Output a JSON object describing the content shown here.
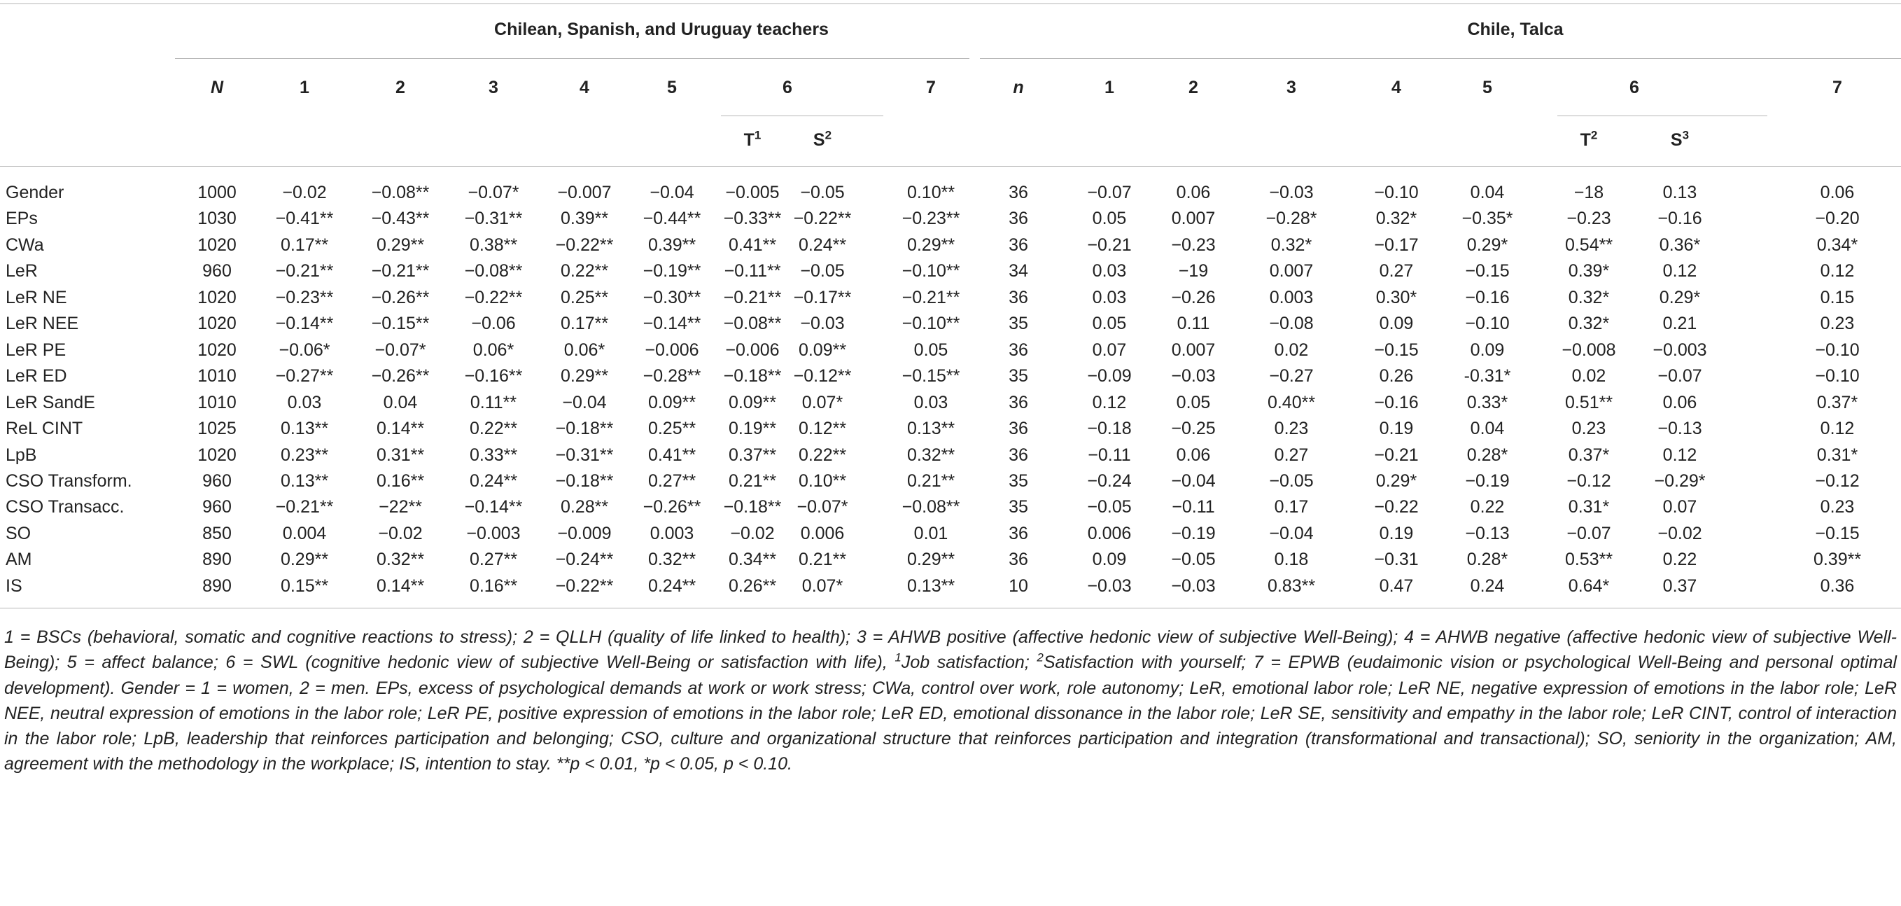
{
  "table": {
    "groups": [
      "Chilean, Spanish, and Uruguay teachers",
      "Chile, Talca"
    ],
    "columns": [
      "N",
      "1",
      "2",
      "3",
      "4",
      "5",
      "6",
      "7",
      "n",
      "1",
      "2",
      "3",
      "4",
      "5",
      "6",
      "7"
    ],
    "subcolumns": [
      {
        "text": "T",
        "sup": "1"
      },
      {
        "text": "S",
        "sup": "2"
      },
      {
        "text": "T",
        "sup": "2"
      },
      {
        "text": "S",
        "sup": "3"
      }
    ],
    "rows": [
      {
        "label": "Gender",
        "cells": [
          "1000",
          "−0.02",
          "−0.08**",
          "−0.07*",
          "−0.007",
          "−0.04",
          "−0.005",
          "−0.05",
          "0.10**",
          "36",
          "−0.07",
          "0.06",
          "−0.03",
          "−0.10",
          "0.04",
          "−18",
          "0.13",
          "0.06"
        ]
      },
      {
        "label": "EPs",
        "cells": [
          "1030",
          "−0.41**",
          "−0.43**",
          "−0.31**",
          "0.39**",
          "−0.44**",
          "−0.33**",
          "−0.22**",
          "−0.23**",
          "36",
          "0.05",
          "0.007",
          "−0.28*",
          "0.32*",
          "−0.35*",
          "−0.23",
          "−0.16",
          "−0.20"
        ]
      },
      {
        "label": "CWa",
        "cells": [
          "1020",
          "0.17**",
          "0.29**",
          "0.38**",
          "−0.22**",
          "0.39**",
          "0.41**",
          "0.24**",
          "0.29**",
          "36",
          "−0.21",
          "−0.23",
          "0.32*",
          "−0.17",
          "0.29*",
          "0.54**",
          "0.36*",
          "0.34*"
        ]
      },
      {
        "label": "LeR",
        "cells": [
          "960",
          "−0.21**",
          "−0.21**",
          "−0.08**",
          "0.22**",
          "−0.19**",
          "−0.11**",
          "−0.05",
          "−0.10**",
          "34",
          "0.03",
          "−19",
          "0.007",
          "0.27",
          "−0.15",
          "0.39*",
          "0.12",
          "0.12"
        ]
      },
      {
        "label": "LeR NE",
        "cells": [
          "1020",
          "−0.23**",
          "−0.26**",
          "−0.22**",
          "0.25**",
          "−0.30**",
          "−0.21**",
          "−0.17**",
          "−0.21**",
          "36",
          "0.03",
          "−0.26",
          "0.003",
          "0.30*",
          "−0.16",
          "0.32*",
          "0.29*",
          "0.15"
        ]
      },
      {
        "label": "LeR NEE",
        "cells": [
          "1020",
          "−0.14**",
          "−0.15**",
          "−0.06",
          "0.17**",
          "−0.14**",
          "−0.08**",
          "−0.03",
          "−0.10**",
          "35",
          "0.05",
          "0.11",
          "−0.08",
          "0.09",
          "−0.10",
          "0.32*",
          "0.21",
          "0.23"
        ]
      },
      {
        "label": "LeR PE",
        "cells": [
          "1020",
          "−0.06*",
          "−0.07*",
          "0.06*",
          "0.06*",
          "−0.006",
          "−0.006",
          "0.09**",
          "0.05",
          "36",
          "0.07",
          "0.007",
          "0.02",
          "−0.15",
          "0.09",
          "−0.008",
          "−0.003",
          "−0.10"
        ]
      },
      {
        "label": "LeR ED",
        "cells": [
          "1010",
          "−0.27**",
          "−0.26**",
          "−0.16**",
          "0.29**",
          "−0.28**",
          "−0.18**",
          "−0.12**",
          "−0.15**",
          "35",
          "−0.09",
          "−0.03",
          "−0.27",
          "0.26",
          "-0.31*",
          "0.02",
          "−0.07",
          "−0.10"
        ]
      },
      {
        "label": "LeR SandE",
        "cells": [
          "1010",
          "0.03",
          "0.04",
          "0.11**",
          "−0.04",
          "0.09**",
          "0.09**",
          "0.07*",
          "0.03",
          "36",
          "0.12",
          "0.05",
          "0.40**",
          "−0.16",
          "0.33*",
          "0.51**",
          "0.06",
          "0.37*"
        ]
      },
      {
        "label": "ReL CINT",
        "cells": [
          "1025",
          "0.13**",
          "0.14**",
          "0.22**",
          "−0.18**",
          "0.25**",
          "0.19**",
          "0.12**",
          "0.13**",
          "36",
          "−0.18",
          "−0.25",
          "0.23",
          "0.19",
          "0.04",
          "0.23",
          "−0.13",
          "0.12"
        ]
      },
      {
        "label": "LpB",
        "cells": [
          "1020",
          "0.23**",
          "0.31**",
          "0.33**",
          "−0.31**",
          "0.41**",
          "0.37**",
          "0.22**",
          "0.32**",
          "36",
          "−0.11",
          "0.06",
          "0.27",
          "−0.21",
          "0.28*",
          "0.37*",
          "0.12",
          "0.31*"
        ]
      },
      {
        "label": "CSO Transform.",
        "cells": [
          "960",
          "0.13**",
          "0.16**",
          "0.24**",
          "−0.18**",
          "0.27**",
          "0.21**",
          "0.10**",
          "0.21**",
          "35",
          "−0.24",
          "−0.04",
          "−0.05",
          "0.29*",
          "−0.19",
          "−0.12",
          "−0.29*",
          "−0.12"
        ]
      },
      {
        "label": "CSO Transacc.",
        "cells": [
          "960",
          "−0.21**",
          "−22**",
          "−0.14**",
          "0.28**",
          "−0.26**",
          "−0.18**",
          "−0.07*",
          "−0.08**",
          "35",
          "−0.05",
          "−0.11",
          "0.17",
          "−0.22",
          "0.22",
          "0.31*",
          "0.07",
          "0.23"
        ]
      },
      {
        "label": "SO",
        "cells": [
          "850",
          "0.004",
          "−0.02",
          "−0.003",
          "−0.009",
          "0.003",
          "−0.02",
          "0.006",
          "0.01",
          "36",
          "0.006",
          "−0.19",
          "−0.04",
          "0.19",
          "−0.13",
          "−0.07",
          "−0.02",
          "−0.15"
        ]
      },
      {
        "label": "AM",
        "cells": [
          "890",
          "0.29**",
          "0.32**",
          "0.27**",
          "−0.24**",
          "0.32**",
          "0.34**",
          "0.21**",
          "0.29**",
          "36",
          "0.09",
          "−0.05",
          "0.18",
          "−0.31",
          "0.28*",
          "0.53**",
          "0.22",
          "0.39**"
        ]
      },
      {
        "label": "IS",
        "cells": [
          "890",
          "0.15**",
          "0.14**",
          "0.16**",
          "−0.22**",
          "0.24**",
          "0.26**",
          "0.07*",
          "0.13**",
          "10",
          "−0.03",
          "−0.03",
          "0.83**",
          "0.47",
          "0.24",
          "0.64*",
          "0.37",
          "0.36"
        ]
      }
    ]
  },
  "footnote": [
    {
      "text": "1 = BSCs (behavioral, somatic and cognitive reactions to stress); 2 = QLLH (quality of life linked to health); 3 = AHWB positive (affective hedonic view of subjective Well-Being); 4 = AHWB negative (affective hedonic view of subjective Well-Being); 5 = affect balance; 6 = SWL (cognitive hedonic view of subjective Well-Being or satisfaction with life), "
    },
    {
      "sup": "1"
    },
    {
      "text": "Job satisfaction; "
    },
    {
      "sup": "2"
    },
    {
      "text": "Satisfaction with yourself; 7 = EPWB (eudaimonic vision or psychological Well-Being and personal optimal development). Gender = 1 = women, 2 = men. EPs, excess of psychological demands at work or work stress; CWa, control over work, role autonomy; LeR, emotional labor role; LeR NE, negative expression of emotions in the labor role; LeR NEE, neutral expression of emotions in the labor role; LeR PE, positive expression of emotions in the labor role; LeR ED, emotional dissonance in the labor role; LeR SE, sensitivity and empathy in the labor role; LeR CINT, control of interaction in the labor role; LpB, leadership that reinforces participation and belonging; CSO, culture and organizational structure that reinforces participation and integration (transformational and transactional); SO, seniority in the organization; AM, agreement with the methodology in the workplace; IS, intention to stay. **p < 0.01, *p < 0.05, p < 0.10."
    }
  ]
}
